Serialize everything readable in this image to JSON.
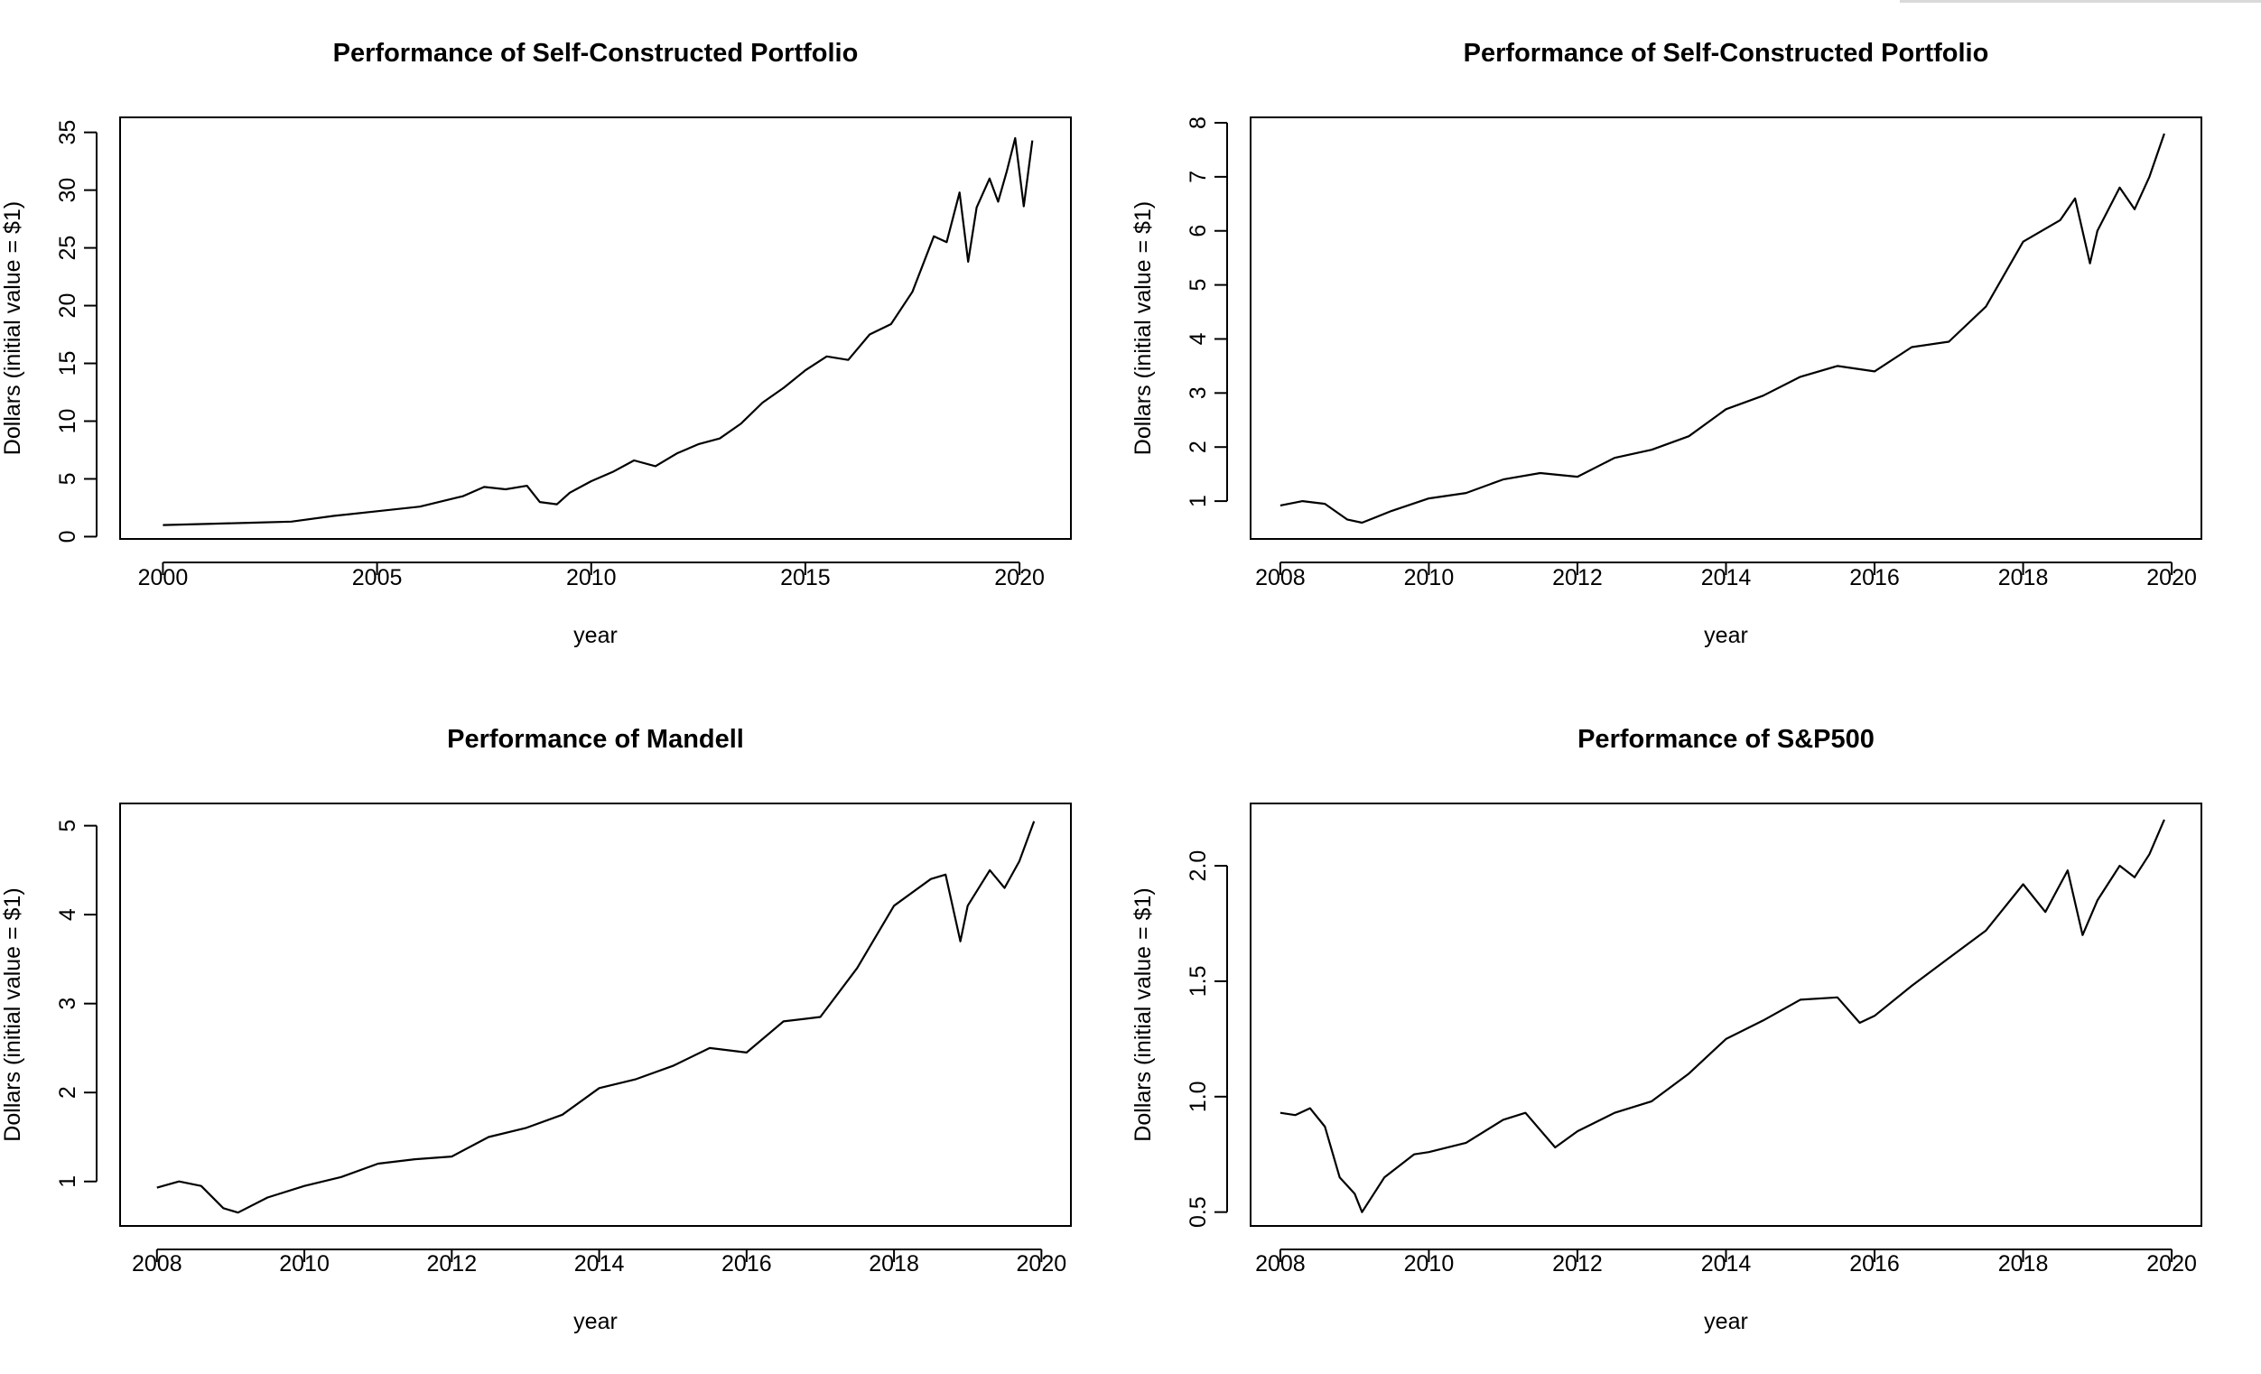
{
  "chart_data": [
    {
      "type": "line",
      "title": "Performance of Self-Constructed Portfolio",
      "xlabel": "year",
      "ylabel": "Dollars (initial value = $1)",
      "xlim": [
        1999,
        2021.2
      ],
      "ylim": [
        -0.2,
        36.3
      ],
      "xticks": [
        2000,
        2005,
        2010,
        2015,
        2020
      ],
      "yticks": [
        0,
        5,
        10,
        15,
        20,
        25,
        30,
        35
      ],
      "series": [
        {
          "x": [
            2000,
            2001,
            2002,
            2003,
            2004,
            2005,
            2006,
            2007,
            2007.5,
            2008,
            2008.5,
            2008.8,
            2009.2,
            2009.5,
            2010,
            2010.5,
            2011,
            2011.5,
            2012,
            2012.5,
            2013,
            2013.5,
            2014,
            2014.5,
            2015,
            2015.5,
            2016,
            2016.5,
            2017,
            2017.5,
            2018,
            2018.3,
            2018.6,
            2018.8,
            2019,
            2019.3,
            2019.5,
            2019.7,
            2019.9,
            2020.1,
            2020.3
          ],
          "y": [
            1,
            1.1,
            1.2,
            1.3,
            1.8,
            2.2,
            2.6,
            3.5,
            4.3,
            4.1,
            4.4,
            3.0,
            2.8,
            3.8,
            4.8,
            5.6,
            6.6,
            6.1,
            7.2,
            8.0,
            8.5,
            9.8,
            11.6,
            12.9,
            14.4,
            15.6,
            15.3,
            17.5,
            18.4,
            21.2,
            26.0,
            25.5,
            29.8,
            23.8,
            28.5,
            31.0,
            29.0,
            31.6,
            34.5,
            28.6,
            34.3
          ]
        }
      ]
    },
    {
      "type": "line",
      "title": "Performance of Self-Constructed Portfolio",
      "xlabel": "year",
      "ylabel": "Dollars (initial value = $1)",
      "xlim": [
        2007.6,
        2020.4
      ],
      "ylim": [
        0.3,
        8.1
      ],
      "xticks": [
        2008,
        2010,
        2012,
        2014,
        2016,
        2018,
        2020
      ],
      "yticks": [
        1,
        2,
        3,
        4,
        5,
        6,
        7,
        8
      ],
      "series": [
        {
          "x": [
            2008,
            2008.3,
            2008.6,
            2008.9,
            2009.1,
            2009.5,
            2010,
            2010.5,
            2011,
            2011.5,
            2012,
            2012.5,
            2013,
            2013.5,
            2014,
            2014.5,
            2015,
            2015.5,
            2016,
            2016.5,
            2017,
            2017.5,
            2018,
            2018.5,
            2018.7,
            2018.9,
            2019,
            2019.3,
            2019.5,
            2019.7,
            2019.9
          ],
          "y": [
            0.92,
            1.0,
            0.95,
            0.66,
            0.6,
            0.82,
            1.05,
            1.15,
            1.4,
            1.52,
            1.45,
            1.8,
            1.95,
            2.2,
            2.7,
            2.95,
            3.3,
            3.5,
            3.4,
            3.85,
            3.95,
            4.6,
            5.8,
            6.2,
            6.6,
            5.4,
            6.0,
            6.8,
            6.4,
            7.0,
            7.8
          ]
        }
      ]
    },
    {
      "type": "line",
      "title": "Performance of Mandell",
      "xlabel": "year",
      "ylabel": "Dollars (initial value = $1)",
      "xlim": [
        2007.5,
        2020.4
      ],
      "ylim": [
        0.5,
        5.25
      ],
      "xticks": [
        2008,
        2010,
        2012,
        2014,
        2016,
        2018,
        2020
      ],
      "yticks": [
        1,
        2,
        3,
        4,
        5
      ],
      "series": [
        {
          "x": [
            2008,
            2008.3,
            2008.6,
            2008.9,
            2009.1,
            2009.5,
            2010,
            2010.5,
            2011,
            2011.5,
            2012,
            2012.5,
            2013,
            2013.5,
            2014,
            2014.5,
            2015,
            2015.5,
            2016,
            2016.5,
            2017,
            2017.5,
            2018,
            2018.5,
            2018.7,
            2018.9,
            2019,
            2019.3,
            2019.5,
            2019.7,
            2019.9
          ],
          "y": [
            0.93,
            1.0,
            0.95,
            0.7,
            0.65,
            0.82,
            0.95,
            1.05,
            1.2,
            1.25,
            1.28,
            1.5,
            1.6,
            1.75,
            2.05,
            2.15,
            2.3,
            2.5,
            2.45,
            2.8,
            2.85,
            3.4,
            4.1,
            4.4,
            4.45,
            3.7,
            4.1,
            4.5,
            4.3,
            4.6,
            5.05
          ]
        }
      ]
    },
    {
      "type": "line",
      "title": "Performance of S&P500",
      "xlabel": "year",
      "ylabel": "Dollars (initial value = $1)",
      "xlim": [
        2007.6,
        2020.4
      ],
      "ylim": [
        0.44,
        2.27
      ],
      "xticks": [
        2008,
        2010,
        2012,
        2014,
        2016,
        2018,
        2020
      ],
      "yticks": [
        0.5,
        1.0,
        1.5,
        2.0
      ],
      "ytick_labels": [
        "0.5",
        "1.0",
        "1.5",
        "2.0"
      ],
      "series": [
        {
          "x": [
            2008,
            2008.2,
            2008.4,
            2008.6,
            2008.8,
            2009,
            2009.1,
            2009.4,
            2009.8,
            2010,
            2010.5,
            2011,
            2011.3,
            2011.7,
            2012,
            2012.5,
            2013,
            2013.5,
            2014,
            2014.5,
            2015,
            2015.5,
            2015.8,
            2016,
            2016.5,
            2017,
            2017.5,
            2018,
            2018.3,
            2018.6,
            2018.8,
            2019,
            2019.3,
            2019.5,
            2019.7,
            2019.9
          ],
          "y": [
            0.93,
            0.92,
            0.95,
            0.87,
            0.65,
            0.58,
            0.5,
            0.65,
            0.75,
            0.76,
            0.8,
            0.9,
            0.93,
            0.78,
            0.85,
            0.93,
            0.98,
            1.1,
            1.25,
            1.33,
            1.42,
            1.43,
            1.32,
            1.35,
            1.48,
            1.6,
            1.72,
            1.92,
            1.8,
            1.98,
            1.7,
            1.85,
            2.0,
            1.95,
            2.05,
            2.2
          ]
        }
      ]
    }
  ]
}
